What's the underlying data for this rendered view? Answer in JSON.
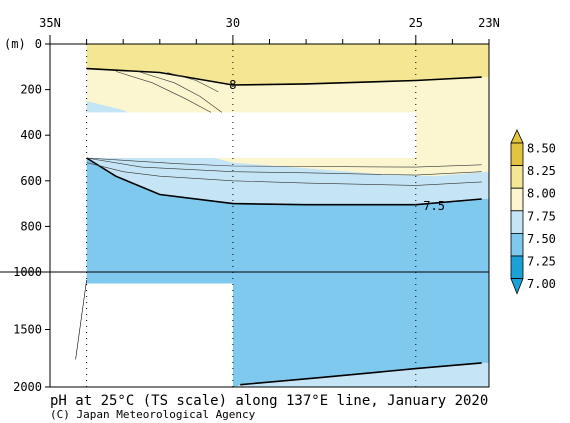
{
  "chart_data": {
    "type": "heatmap",
    "title": "pH at 25°C (TS scale) along 137°E line, January 2020",
    "credit": "(C) Japan Meteorological Agency",
    "x_axis": {
      "quantity": "latitude",
      "range": [
        35,
        23
      ],
      "tick_labels": [
        "35N",
        "30",
        "25",
        "23N"
      ],
      "tick_values": [
        35,
        30,
        25,
        23
      ],
      "observation_stations": [
        34,
        30,
        25
      ]
    },
    "y_axis": {
      "unit_label": "(m)",
      "range": [
        0,
        2000
      ],
      "upper_tick_labels": [
        "0",
        "200",
        "400",
        "600",
        "800",
        "1000"
      ],
      "lower_tick_labels": [
        "1500",
        "2000"
      ],
      "scale_break_depth": 1000
    },
    "colorbar": {
      "levels": [
        "8.50",
        "8.25",
        "8.00",
        "7.75",
        "7.50",
        "7.25",
        "7.00"
      ],
      "bins": [
        {
          "from": 8.25,
          "to": 8.5,
          "color": "#e2c440"
        },
        {
          "from": 8.0,
          "to": 8.25,
          "color": "#f5e693"
        },
        {
          "from": 7.75,
          "to": 8.0,
          "color": "#fbf6cf"
        },
        {
          "from": 7.5,
          "to": 7.75,
          "color": "#c5e4f5"
        },
        {
          "from": 7.25,
          "to": 7.5,
          "color": "#7fc8ee"
        },
        {
          "from": 7.0,
          "to": 7.25,
          "color": "#1aa2d8"
        }
      ]
    },
    "contour_labels": [
      {
        "text": "8",
        "lat": 30.0,
        "depth": 180
      },
      {
        "text": "7.5",
        "lat": 24.5,
        "depth": 710
      }
    ],
    "approx_isolines": [
      {
        "value": 8.0,
        "points": [
          [
            34.0,
            108
          ],
          [
            32.0,
            125
          ],
          [
            30.0,
            180
          ],
          [
            28.0,
            175
          ],
          [
            25.0,
            160
          ],
          [
            23.2,
            145
          ]
        ]
      },
      {
        "value": 7.5,
        "points": [
          [
            34.0,
            500
          ],
          [
            33.2,
            580
          ],
          [
            32.0,
            660
          ],
          [
            30.0,
            700
          ],
          [
            28.0,
            705
          ],
          [
            25.0,
            705
          ],
          [
            23.2,
            680
          ]
        ]
      },
      {
        "value": 7.5,
        "points": [
          [
            29.8,
            1980
          ],
          [
            27.5,
            1915
          ],
          [
            25.0,
            1840
          ],
          [
            23.2,
            1790
          ]
        ]
      }
    ],
    "no_data_regions": [
      {
        "lat_from": 35,
        "lat_to": 34,
        "depth_from": 0,
        "depth_to": 2000
      },
      {
        "lat_from": 34,
        "lat_to": 30,
        "depth_from": 1100,
        "depth_to": 2000
      },
      {
        "lat_from": 34,
        "lat_to": 25,
        "depth_from": 300,
        "depth_to": 500
      }
    ]
  }
}
